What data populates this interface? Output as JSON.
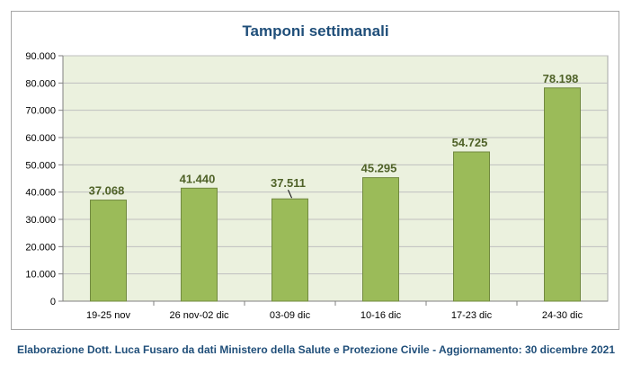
{
  "chart_data": {
    "type": "bar",
    "title": "Tamponi settimanali",
    "categories": [
      "19-25 nov",
      "26 nov-02 dic",
      "03-09 dic",
      "10-16 dic",
      "17-23 dic",
      "24-30 dic"
    ],
    "values": [
      37068,
      41440,
      37511,
      45295,
      54725,
      78198
    ],
    "value_labels": [
      "37.068",
      "41.440",
      "37.511",
      "45.295",
      "54.725",
      "78.198"
    ],
    "yticks": [
      "0",
      "10.000",
      "20.000",
      "30.000",
      "40.000",
      "50.000",
      "60.000",
      "70.000",
      "80.000",
      "90.000"
    ],
    "ylim": [
      0,
      90000
    ],
    "grid": true,
    "bar_color": "#9bbb59",
    "bar_border_color": "#71893f",
    "plot_area_color": "#ebf1de",
    "label_color": "#4f6228"
  },
  "footer": {
    "text": "Elaborazione Dott. Luca Fusaro da dati Ministero della Salute e Protezione Civile - Aggiornamento: 30 dicembre 2021"
  }
}
